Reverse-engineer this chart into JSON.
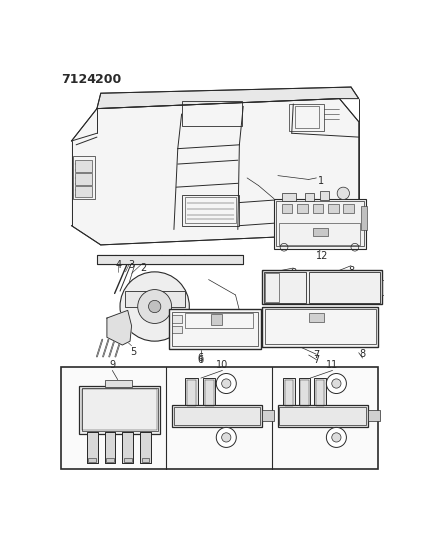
{
  "title": "7124  200",
  "bg": "#ffffff",
  "lc": "#2a2a2a",
  "fig_w": 4.28,
  "fig_h": 5.33,
  "dpi": 100,
  "gray_light": "#d8d8d8",
  "gray_mid": "#b0b0b0",
  "gray_dark": "#888888"
}
